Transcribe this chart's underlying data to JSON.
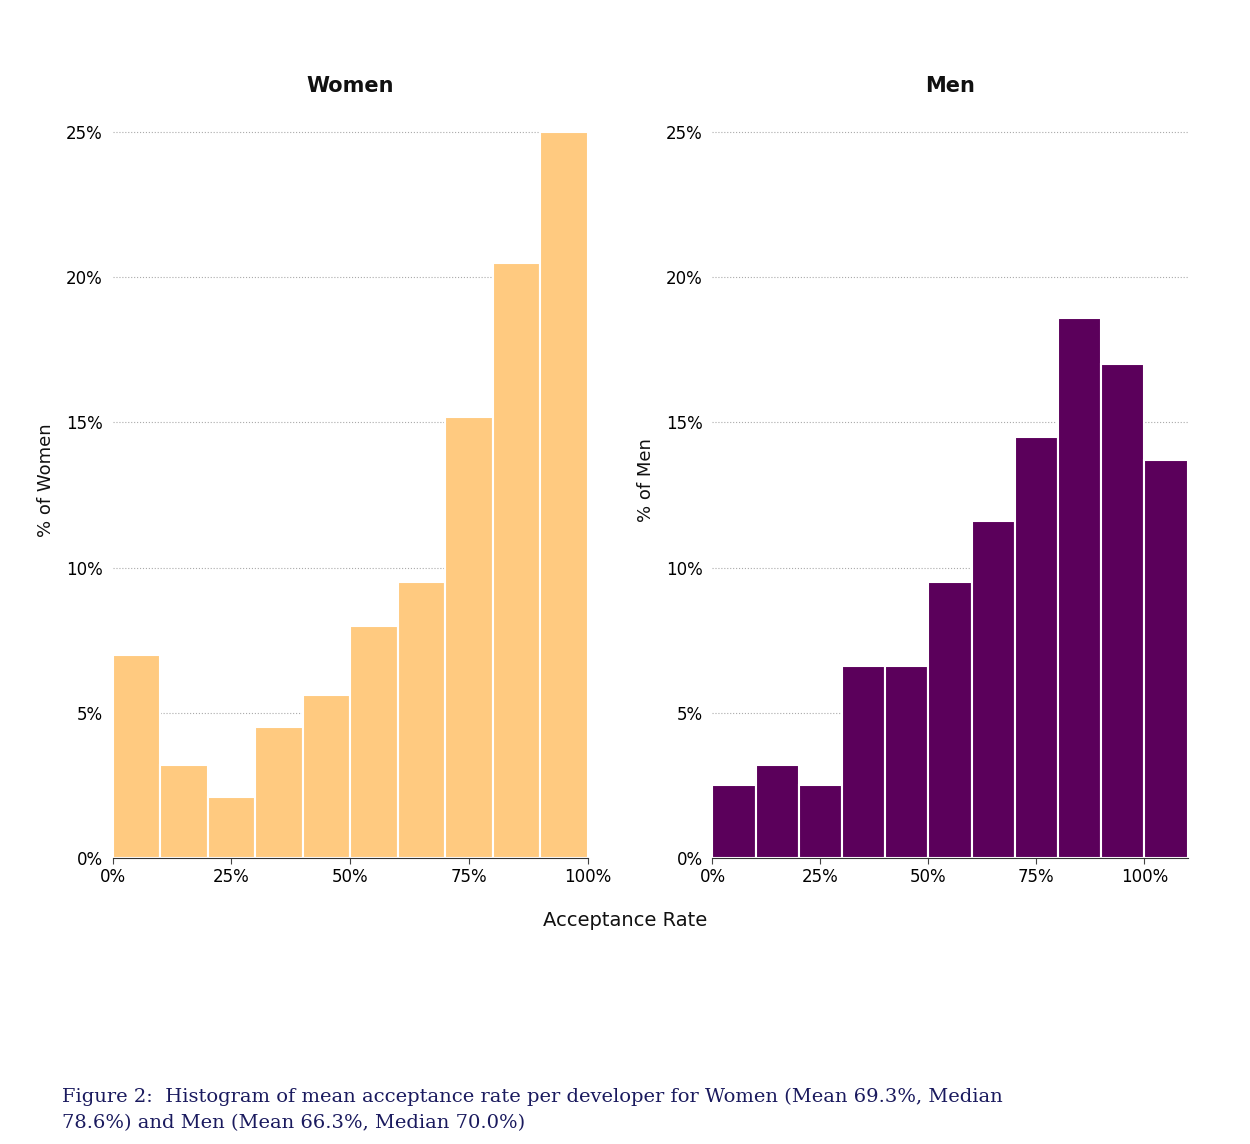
{
  "women_values": [
    7.0,
    3.2,
    2.1,
    4.5,
    5.6,
    8.0,
    9.5,
    15.2,
    20.5,
    25.0
  ],
  "men_values": [
    2.5,
    3.2,
    2.5,
    6.6,
    6.6,
    9.5,
    11.6,
    14.5,
    18.6,
    17.0,
    13.7
  ],
  "women_color": "#FFCA80",
  "men_color": "#5B005B",
  "women_title": "Women",
  "men_title": "Men",
  "women_ylabel": "% of Women",
  "men_ylabel": "% of Men",
  "xlabel": "Acceptance Rate",
  "ylim": [
    0,
    26
  ],
  "yticks": [
    0,
    5,
    10,
    15,
    20,
    25
  ],
  "women_xtick_labels": [
    "0%",
    "25%",
    "50%",
    "75%",
    "100%"
  ],
  "women_xtick_positions": [
    0,
    25,
    50,
    75,
    100
  ],
  "men_xtick_labels": [
    "0%",
    "25%",
    "50%",
    "75%",
    "100%"
  ],
  "men_xtick_positions": [
    0,
    25,
    50,
    75,
    100
  ],
  "caption_line1": "Figure 2:  Histogram of mean acceptance rate per developer for Women (Mean 69.3%, Median",
  "caption_line2": "78.6%) and Men (Mean 66.3%, Median 70.0%)",
  "background_color": "#ffffff",
  "bar_edgecolor": "#ffffff",
  "grid_color": "#aaaaaa",
  "title_fontsize": 15,
  "label_fontsize": 13,
  "tick_fontsize": 12,
  "caption_fontsize": 14,
  "caption_color": "#1a1a5e"
}
